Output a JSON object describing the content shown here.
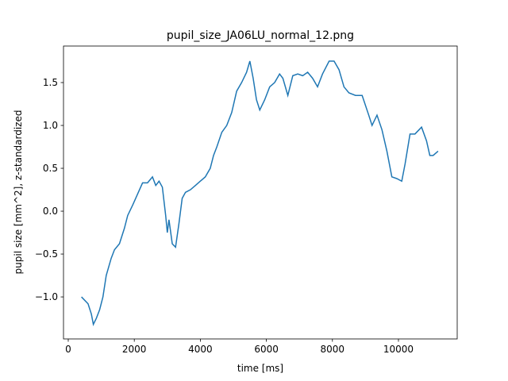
{
  "chart_data": {
    "type": "line",
    "title": "pupil_size_JA06LU_normal_12.png",
    "xlabel": "time [ms]",
    "ylabel": "pupil size [mm^2], z-standardized",
    "x": [
      400,
      600,
      700,
      760,
      850,
      950,
      1050,
      1150,
      1300,
      1400,
      1550,
      1700,
      1800,
      1950,
      2100,
      2250,
      2400,
      2550,
      2650,
      2750,
      2850,
      2950,
      3000,
      3050,
      3150,
      3250,
      3350,
      3450,
      3550,
      3700,
      3850,
      4000,
      4150,
      4300,
      4400,
      4500,
      4650,
      4800,
      4950,
      5100,
      5250,
      5400,
      5500,
      5600,
      5700,
      5800,
      5950,
      6100,
      6250,
      6400,
      6500,
      6650,
      6800,
      6950,
      7100,
      7250,
      7400,
      7550,
      7700,
      7900,
      8050,
      8200,
      8350,
      8500,
      8700,
      8900,
      9100,
      9200,
      9350,
      9500,
      9650,
      9800,
      9950,
      10100,
      10200,
      10350,
      10500,
      10700,
      10850,
      10950,
      11050,
      11200
    ],
    "series": [
      {
        "color": "#1f77b4",
        "values": [
          -1.0,
          -1.08,
          -1.2,
          -1.32,
          -1.25,
          -1.15,
          -1.0,
          -0.75,
          -0.55,
          -0.45,
          -0.38,
          -0.2,
          -0.05,
          0.07,
          0.2,
          0.33,
          0.33,
          0.4,
          0.3,
          0.35,
          0.28,
          -0.05,
          -0.25,
          -0.1,
          -0.38,
          -0.42,
          -0.15,
          0.15,
          0.22,
          0.25,
          0.3,
          0.35,
          0.4,
          0.5,
          0.65,
          0.75,
          0.92,
          1.0,
          1.15,
          1.4,
          1.5,
          1.62,
          1.75,
          1.55,
          1.3,
          1.18,
          1.3,
          1.45,
          1.5,
          1.6,
          1.55,
          1.35,
          1.58,
          1.6,
          1.58,
          1.62,
          1.55,
          1.45,
          1.6,
          1.75,
          1.75,
          1.65,
          1.45,
          1.38,
          1.35,
          1.35,
          1.12,
          1.0,
          1.12,
          0.95,
          0.7,
          0.4,
          0.38,
          0.35,
          0.55,
          0.9,
          0.9,
          0.98,
          0.82,
          0.65,
          0.65,
          0.7
        ]
      }
    ],
    "xlim": [
      -144,
      11779
    ],
    "ylim": [
      -1.49,
      1.926
    ],
    "xticks": [
      0,
      2000,
      4000,
      6000,
      8000,
      10000
    ],
    "yticks": [
      {
        "value": -1,
        "label": "−1.0"
      },
      {
        "value": -0.5,
        "label": "−0.5"
      },
      {
        "value": 0,
        "label": "0.0"
      },
      {
        "value": 0.5,
        "label": "0.5"
      },
      {
        "value": 1,
        "label": "1.0"
      },
      {
        "value": 1.5,
        "label": "1.5"
      }
    ]
  }
}
